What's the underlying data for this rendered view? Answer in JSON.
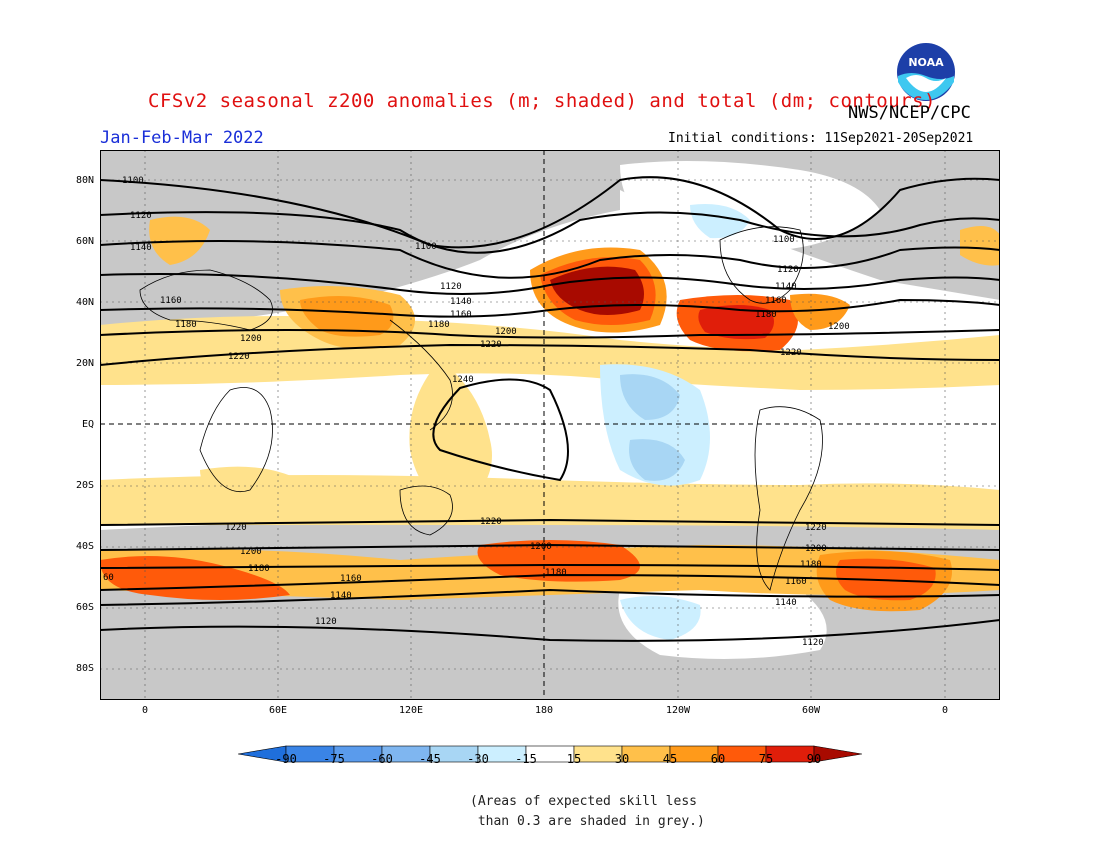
{
  "title": "CFSv2 seasonal z200 anomalies (m; shaded) and total (dm; contours)",
  "agency": "NWS/NCEP/CPC",
  "season": "Jan-Feb-Mar 2022",
  "initial_conditions": "Initial conditions: 11Sep2021-20Sep2021",
  "logo_text": "NOAA",
  "lat_ticks": [
    "80N",
    "60N",
    "40N",
    "20N",
    "EQ",
    "20S",
    "40S",
    "60S",
    "80S"
  ],
  "lon_ticks": [
    "0",
    "60E",
    "120E",
    "180",
    "120W",
    "60W",
    "0"
  ],
  "colorbar": {
    "labels": [
      "-90",
      "-75",
      "-60",
      "-45",
      "-30",
      "-15",
      "15",
      "30",
      "45",
      "60",
      "75",
      "90"
    ],
    "colors": [
      "#1f6fdc",
      "#3a84e6",
      "#5a9bec",
      "#7fb6f0",
      "#a8d6f4",
      "#ccefff",
      "#ffffff",
      "#ffe28c",
      "#ffc04a",
      "#ff9a1a",
      "#ff5a0a",
      "#e01e0a",
      "#a80a00"
    ]
  },
  "skill_note": "(Areas of expected skill less\n than 0.3 are shaded in grey.)",
  "contour_labels": {
    "c1100a": "1100",
    "c1120a": "1120",
    "c1140a": "1140",
    "c1160a": "1160",
    "c1180a": "1180",
    "c1200a": "1200",
    "c1220a": "1220",
    "c1100b": "1100",
    "c1120b": "1120",
    "c1140b": "1140",
    "c1160b": "1160",
    "c1180b": "1180",
    "c1200b": "1200",
    "c1220b": "1220",
    "c1240": "1240",
    "c1100c": "1100",
    "c1120c": "1120",
    "c1140c": "1140",
    "c1160c": "1160",
    "c1180c": "1180",
    "c1200c": "1200",
    "c1220c": "1220",
    "s1220a": "1220",
    "s1200a": "1200",
    "s1180a": "1180",
    "s1160a": "1160",
    "s1140a": "1140",
    "s1120a": "1120",
    "s1220b": "1220",
    "s1200b": "1200",
    "s1180b": "1180",
    "s1220c": "1220",
    "s1200c": "1200",
    "s1180c": "1180",
    "s1160c": "1160",
    "s1140c": "1140",
    "s1120c": "1120",
    "s60": "60"
  },
  "colors": {
    "skill_grey": "#c8c8c8",
    "title_red": "#e01010",
    "season_blue": "#1a2fd8"
  }
}
